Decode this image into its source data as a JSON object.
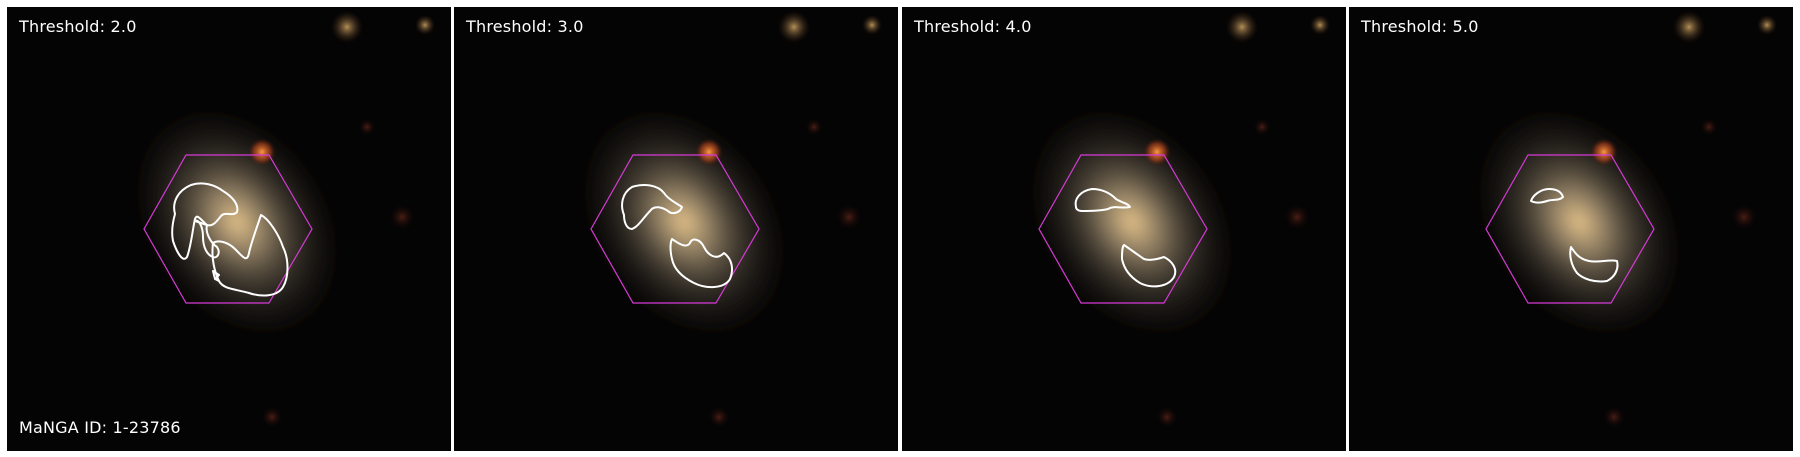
{
  "panels": [
    {
      "threshold_label": "Threshold: 2.0"
    },
    {
      "threshold_label": "Threshold: 3.0"
    },
    {
      "threshold_label": "Threshold: 4.0"
    },
    {
      "threshold_label": "Threshold: 5.0"
    }
  ],
  "manga_id_label": "MaNGA ID: 1-23786",
  "colors": {
    "ifu_hexagon": "#d63ad6",
    "contour": "#ffffff",
    "background": "#050404"
  }
}
